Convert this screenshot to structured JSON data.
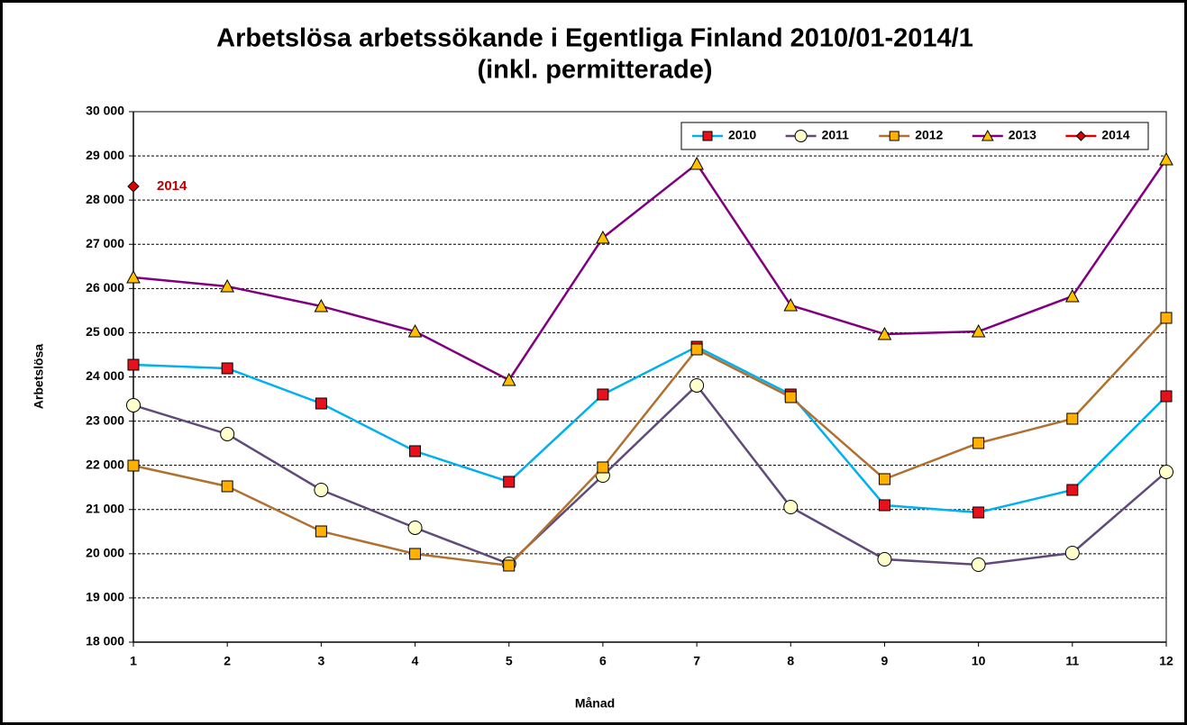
{
  "chart_data": {
    "type": "line",
    "title": "Arbetslösa arbetssökande i Egentliga Finland 2010/01-2014/1",
    "subtitle": "(inkl. permitterade)",
    "xlabel": "Månad",
    "ylabel": "Arbetslösa",
    "x": [
      1,
      2,
      3,
      4,
      5,
      6,
      7,
      8,
      9,
      10,
      11,
      12
    ],
    "xlim": [
      1,
      12
    ],
    "xticks": [
      1,
      2,
      3,
      4,
      5,
      6,
      7,
      8,
      9,
      10,
      11,
      12
    ],
    "ylim": [
      18000,
      30000
    ],
    "yticks": [
      {
        "value": 18000,
        "label": "18 000"
      },
      {
        "value": 19000,
        "label": "19 000"
      },
      {
        "value": 20000,
        "label": "20 000"
      },
      {
        "value": 21000,
        "label": "21 000"
      },
      {
        "value": 22000,
        "label": "22 000"
      },
      {
        "value": 23000,
        "label": "23 000"
      },
      {
        "value": 24000,
        "label": "24 000"
      },
      {
        "value": 25000,
        "label": "25 000"
      },
      {
        "value": 26000,
        "label": "26 000"
      },
      {
        "value": 27000,
        "label": "27 000"
      },
      {
        "value": 28000,
        "label": "28 000"
      },
      {
        "value": 29000,
        "label": "29 000"
      },
      {
        "value": 30000,
        "label": "30 000"
      }
    ],
    "grid": true,
    "legend": "top-right",
    "annotation": "2014",
    "series": [
      {
        "name": "2010",
        "color": "#00b0f0",
        "marker": "square",
        "marker_color": "#e8101a",
        "values": [
          24275,
          24194,
          23399,
          22320,
          21627,
          23603,
          24683,
          23603,
          21097,
          20934,
          21443,
          23562
        ]
      },
      {
        "name": "2011",
        "color": "#604a7b",
        "marker": "circle",
        "marker_color": "#ffffcc",
        "values": [
          23359,
          22707,
          21443,
          20588,
          19772,
          21769,
          23807,
          21056,
          19874,
          19752,
          20017,
          21851
        ]
      },
      {
        "name": "2012",
        "color": "#b07030",
        "marker": "square",
        "marker_color": "#ffb000",
        "values": [
          21993,
          21525,
          20506,
          19997,
          19732,
          21953,
          24622,
          23542,
          21688,
          22503,
          23053,
          25335
        ]
      },
      {
        "name": "2013",
        "color": "#800080",
        "marker": "triangle",
        "marker_color": "#ffc000",
        "values": [
          26252,
          26048,
          25600,
          25029,
          23929,
          27148,
          28819,
          25620,
          24968,
          25029,
          25824,
          28921
        ]
      },
      {
        "name": "2014",
        "color": "#e00000",
        "marker": "diamond",
        "marker_color": "#e00000",
        "values": [
          28310,
          null,
          null,
          null,
          null,
          null,
          null,
          null,
          null,
          null,
          null,
          null
        ]
      }
    ]
  }
}
